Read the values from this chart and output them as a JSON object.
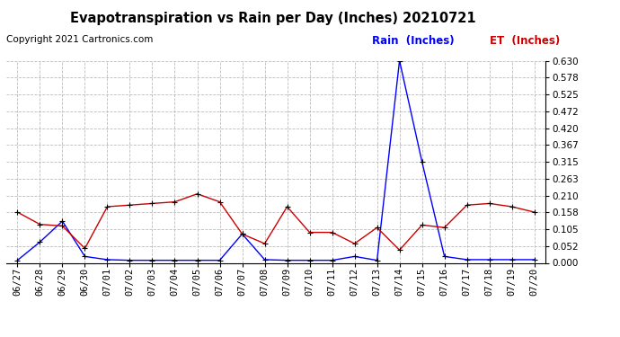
{
  "title": "Evapotranspiration vs Rain per Day (Inches) 20210721",
  "copyright": "Copyright 2021 Cartronics.com",
  "legend_rain": "Rain  (Inches)",
  "legend_et": "ET  (Inches)",
  "dates": [
    "06/27",
    "06/28",
    "06/29",
    "06/30",
    "07/01",
    "07/02",
    "07/03",
    "07/04",
    "07/05",
    "07/06",
    "07/07",
    "07/08",
    "07/09",
    "07/10",
    "07/11",
    "07/12",
    "07/13",
    "07/14",
    "07/15",
    "07/16",
    "07/17",
    "07/18",
    "07/19",
    "07/20"
  ],
  "rain": [
    0.008,
    0.065,
    0.13,
    0.02,
    0.01,
    0.008,
    0.008,
    0.008,
    0.008,
    0.008,
    0.09,
    0.01,
    0.008,
    0.008,
    0.008,
    0.02,
    0.008,
    0.63,
    0.315,
    0.02,
    0.01,
    0.01,
    0.01,
    0.01
  ],
  "et": [
    0.158,
    0.12,
    0.115,
    0.045,
    0.175,
    0.18,
    0.185,
    0.19,
    0.215,
    0.19,
    0.09,
    0.06,
    0.175,
    0.095,
    0.095,
    0.06,
    0.11,
    0.04,
    0.118,
    0.11,
    0.18,
    0.185,
    0.175,
    0.158
  ],
  "rain_color": "#0000ff",
  "et_color": "#cc0000",
  "marker_color": "#000000",
  "grid_color": "#bbbbbb",
  "background_color": "#ffffff",
  "title_fontsize": 10.5,
  "copyright_fontsize": 7.5,
  "legend_fontsize": 8.5,
  "tick_fontsize": 7.5,
  "ylim": [
    0.0,
    0.63
  ],
  "yticks": [
    0.0,
    0.052,
    0.105,
    0.158,
    0.21,
    0.263,
    0.315,
    0.367,
    0.42,
    0.472,
    0.525,
    0.578,
    0.63
  ]
}
